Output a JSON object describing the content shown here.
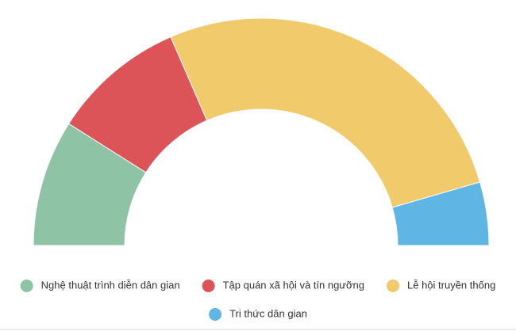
{
  "chart_data": {
    "type": "semi-donut",
    "categories": [
      "Nghệ thuật trình diễn dân gian",
      "Tập quán xã hội và tín ngưỡng",
      "Lễ hội truyền thống",
      "Tri thức dân gian"
    ],
    "values": [
      18,
      19,
      54,
      9
    ],
    "colors": [
      "#8fc3a6",
      "#dc5458",
      "#f0ca6b",
      "#5fb6e5"
    ]
  }
}
